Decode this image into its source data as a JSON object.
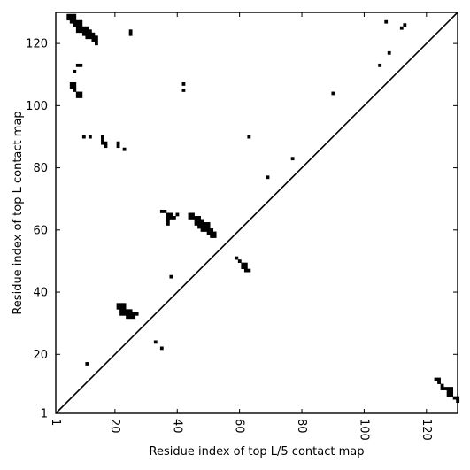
{
  "chart_data": {
    "type": "heatmap",
    "title": "",
    "xlabel": "Residue index of top L/5 contact map",
    "ylabel": "Residue index of top L contact map",
    "xlim": [
      1,
      130
    ],
    "ylim": [
      1,
      130
    ],
    "xticks": [
      1,
      20,
      40,
      60,
      80,
      100,
      120
    ],
    "xtick_labels": [
      "1",
      "20",
      "40",
      "60",
      "80",
      "100",
      "120"
    ],
    "yticks": [
      1,
      20,
      40,
      60,
      80,
      100,
      120
    ],
    "ytick_labels": [
      "1",
      "20",
      "40",
      "60",
      "80",
      "100",
      "120"
    ],
    "xtick_rotation": 90,
    "diagonal_line": [
      [
        1,
        1
      ],
      [
        130,
        130
      ]
    ],
    "cell_color": "#000000",
    "background_color": "#ffffff",
    "cells": [
      [
        5,
        129
      ],
      [
        6,
        129
      ],
      [
        7,
        129
      ],
      [
        5,
        128
      ],
      [
        6,
        128
      ],
      [
        7,
        128
      ],
      [
        6,
        127
      ],
      [
        7,
        127
      ],
      [
        8,
        127
      ],
      [
        9,
        127
      ],
      [
        7,
        126
      ],
      [
        8,
        126
      ],
      [
        9,
        126
      ],
      [
        8,
        125
      ],
      [
        9,
        125
      ],
      [
        10,
        125
      ],
      [
        11,
        125
      ],
      [
        8,
        124
      ],
      [
        9,
        124
      ],
      [
        10,
        124
      ],
      [
        11,
        124
      ],
      [
        12,
        124
      ],
      [
        25,
        124
      ],
      [
        10,
        123
      ],
      [
        11,
        123
      ],
      [
        12,
        123
      ],
      [
        13,
        123
      ],
      [
        25,
        123
      ],
      [
        11,
        122
      ],
      [
        12,
        122
      ],
      [
        13,
        122
      ],
      [
        14,
        122
      ],
      [
        13,
        121
      ],
      [
        14,
        121
      ],
      [
        14,
        120
      ],
      [
        8,
        113
      ],
      [
        9,
        113
      ],
      [
        7,
        111
      ],
      [
        6,
        107
      ],
      [
        7,
        107
      ],
      [
        6,
        106
      ],
      [
        7,
        106
      ],
      [
        7,
        105
      ],
      [
        8,
        104
      ],
      [
        9,
        104
      ],
      [
        8,
        103
      ],
      [
        9,
        103
      ],
      [
        10,
        90
      ],
      [
        12,
        90
      ],
      [
        16,
        90
      ],
      [
        16,
        89
      ],
      [
        16,
        88
      ],
      [
        17,
        88
      ],
      [
        17,
        87
      ],
      [
        21,
        88
      ],
      [
        21,
        87
      ],
      [
        23,
        86
      ],
      [
        42,
        107
      ],
      [
        42,
        105
      ],
      [
        35,
        66
      ],
      [
        36,
        66
      ],
      [
        37,
        65
      ],
      [
        38,
        65
      ],
      [
        40,
        65
      ],
      [
        37,
        64
      ],
      [
        38,
        64
      ],
      [
        39,
        64
      ],
      [
        37,
        63
      ],
      [
        37,
        62
      ],
      [
        44,
        65
      ],
      [
        45,
        65
      ],
      [
        44,
        64
      ],
      [
        45,
        64
      ],
      [
        46,
        64
      ],
      [
        47,
        64
      ],
      [
        46,
        63
      ],
      [
        47,
        63
      ],
      [
        48,
        63
      ],
      [
        46,
        62
      ],
      [
        47,
        62
      ],
      [
        48,
        62
      ],
      [
        49,
        62
      ],
      [
        50,
        62
      ],
      [
        47,
        61
      ],
      [
        48,
        61
      ],
      [
        49,
        61
      ],
      [
        50,
        61
      ],
      [
        48,
        60
      ],
      [
        49,
        60
      ],
      [
        50,
        60
      ],
      [
        51,
        60
      ],
      [
        50,
        59
      ],
      [
        51,
        59
      ],
      [
        52,
        59
      ],
      [
        51,
        58
      ],
      [
        52,
        58
      ],
      [
        38,
        45
      ],
      [
        59,
        51
      ],
      [
        60,
        50
      ],
      [
        61,
        49
      ],
      [
        62,
        49
      ],
      [
        61,
        48
      ],
      [
        62,
        48
      ],
      [
        62,
        47
      ],
      [
        63,
        47
      ],
      [
        63,
        90
      ],
      [
        69,
        77
      ],
      [
        77,
        83
      ],
      [
        90,
        104
      ],
      [
        107,
        127
      ],
      [
        112,
        125
      ],
      [
        113,
        126
      ],
      [
        108,
        117
      ],
      [
        105,
        113
      ],
      [
        21,
        36
      ],
      [
        22,
        36
      ],
      [
        23,
        36
      ],
      [
        21,
        35
      ],
      [
        22,
        35
      ],
      [
        23,
        35
      ],
      [
        22,
        34
      ],
      [
        23,
        34
      ],
      [
        24,
        34
      ],
      [
        25,
        34
      ],
      [
        22,
        33
      ],
      [
        23,
        33
      ],
      [
        24,
        33
      ],
      [
        25,
        33
      ],
      [
        26,
        33
      ],
      [
        27,
        33
      ],
      [
        24,
        32
      ],
      [
        25,
        32
      ],
      [
        26,
        32
      ],
      [
        33,
        24
      ],
      [
        35,
        22
      ],
      [
        11,
        17
      ],
      [
        123,
        12
      ],
      [
        124,
        12
      ],
      [
        124,
        11
      ],
      [
        125,
        10
      ],
      [
        125,
        9
      ],
      [
        126,
        9
      ],
      [
        127,
        9
      ],
      [
        128,
        9
      ],
      [
        127,
        8
      ],
      [
        128,
        8
      ],
      [
        127,
        7
      ],
      [
        128,
        7
      ],
      [
        129,
        6
      ],
      [
        130,
        6
      ],
      [
        130,
        5
      ]
    ]
  }
}
